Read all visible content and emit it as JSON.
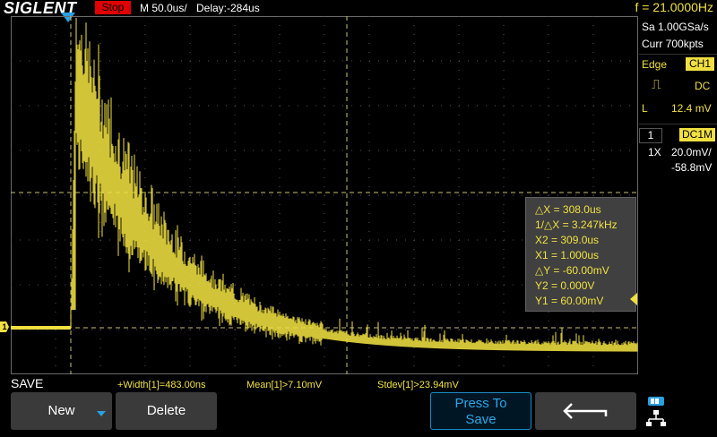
{
  "topbar": {
    "brand": "SIGLENT",
    "run_state": "Stop",
    "timebase": "M 50.0us/",
    "delay": "Delay:-284us",
    "frequency": "f = 21.0000Hz"
  },
  "right_panel": {
    "sample_rate": "Sa 1.00GSa/s",
    "memory_depth": "Curr 700kpts",
    "trigger_type": "Edge",
    "trigger_source": "CH1",
    "trigger_coupling": "DC",
    "trigger_level_label": "L",
    "trigger_level": "12.4 mV",
    "channel_number": "1",
    "channel_coupling": "DC1M",
    "probe": "1X",
    "volts_per_div": "20.0mV/",
    "offset": "-58.8mV"
  },
  "cursor_measurements": [
    "△X = 308.0us",
    "1/△X = 3.247kHz",
    "X2 = 309.0us",
    "X1 = 1.000us",
    "△Y = -60.00mV",
    "Y2 = 0.000V",
    "Y1 = 60.00mV"
  ],
  "channel_marker": "1",
  "status": {
    "mode_label": "SAVE",
    "width": "+Width[1]=483.00ns",
    "mean": "Mean[1]>7.10mV",
    "stdev": "Stdev[1]>23.94mV"
  },
  "buttons": {
    "new_label": "New",
    "delete_label": "Delete",
    "press_line1": "Press To",
    "press_line2": "Save"
  },
  "colors": {
    "trace": "#f0e040",
    "accent_blue": "#2aa0e0",
    "stop_red": "#e00000"
  }
}
